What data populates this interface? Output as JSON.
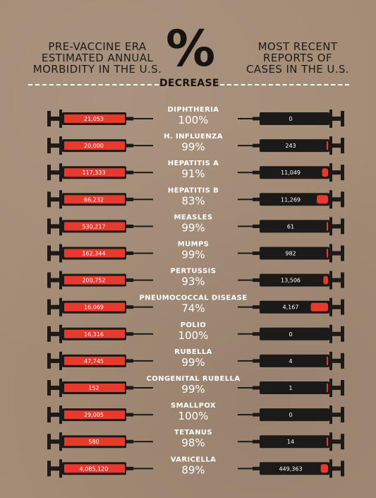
{
  "header": {
    "left": "PRE-VACCINE ERA\nESTIMATED ANNUAL\nMORBIDITY IN THE U.S.",
    "center": "%",
    "center_sub": "DECREASE",
    "right": "MOST RECENT\nREPORTS OF\nCASES IN THE U.S."
  },
  "colors": {
    "background": "#a48c76",
    "syringe": "#1c1a19",
    "fill": "#e8392f",
    "text_dark": "#161311",
    "text_light": "#ffffff"
  },
  "chart_data": {
    "type": "table",
    "columns": [
      "Pre-vaccine era estimated annual morbidity",
      "% decrease",
      "Most recent reports of cases"
    ],
    "rows": [
      {
        "disease": "DIPHTHERIA",
        "pre": "21,053",
        "decrease": "100%",
        "recent": "0",
        "recent_fill": 0.0
      },
      {
        "disease": "H. INFLUENZA",
        "pre": "20,000",
        "decrease": "99%",
        "recent": "243",
        "recent_fill": 0.01
      },
      {
        "disease": "HEPATITIS A",
        "pre": "117,333",
        "decrease": "91%",
        "recent": "11,049",
        "recent_fill": 0.09
      },
      {
        "disease": "HEPATITIS B",
        "pre": "66,232",
        "decrease": "83%",
        "recent": "11,269",
        "recent_fill": 0.17
      },
      {
        "disease": "MEASLES",
        "pre": "530,217",
        "decrease": "99%",
        "recent": "61",
        "recent_fill": 0.01
      },
      {
        "disease": "MUMPS",
        "pre": "162,344",
        "decrease": "99%",
        "recent": "982",
        "recent_fill": 0.01
      },
      {
        "disease": "PERTUSSIS",
        "pre": "200,752",
        "decrease": "93%",
        "recent": "13,506",
        "recent_fill": 0.07
      },
      {
        "disease": "PNEUMOCOCCAL DISEASE",
        "pre": "16,069",
        "decrease": "74%",
        "recent": "4,167",
        "recent_fill": 0.26
      },
      {
        "disease": "POLIO",
        "pre": "16,316",
        "decrease": "100%",
        "recent": "0",
        "recent_fill": 0.0
      },
      {
        "disease": "RUBELLA",
        "pre": "47,745",
        "decrease": "99%",
        "recent": "4",
        "recent_fill": 0.01
      },
      {
        "disease": "CONGENITAL RUBELLA",
        "pre": "152",
        "decrease": "99%",
        "recent": "1",
        "recent_fill": 0.01
      },
      {
        "disease": "SMALLPOX",
        "pre": "29,005",
        "decrease": "100%",
        "recent": "0",
        "recent_fill": 0.0
      },
      {
        "disease": "TETANUS",
        "pre": "580",
        "decrease": "98%",
        "recent": "14",
        "recent_fill": 0.02
      },
      {
        "disease": "VARICELLA",
        "pre": "4,085,120",
        "decrease": "89%",
        "recent": "449,363",
        "recent_fill": 0.11
      }
    ]
  }
}
